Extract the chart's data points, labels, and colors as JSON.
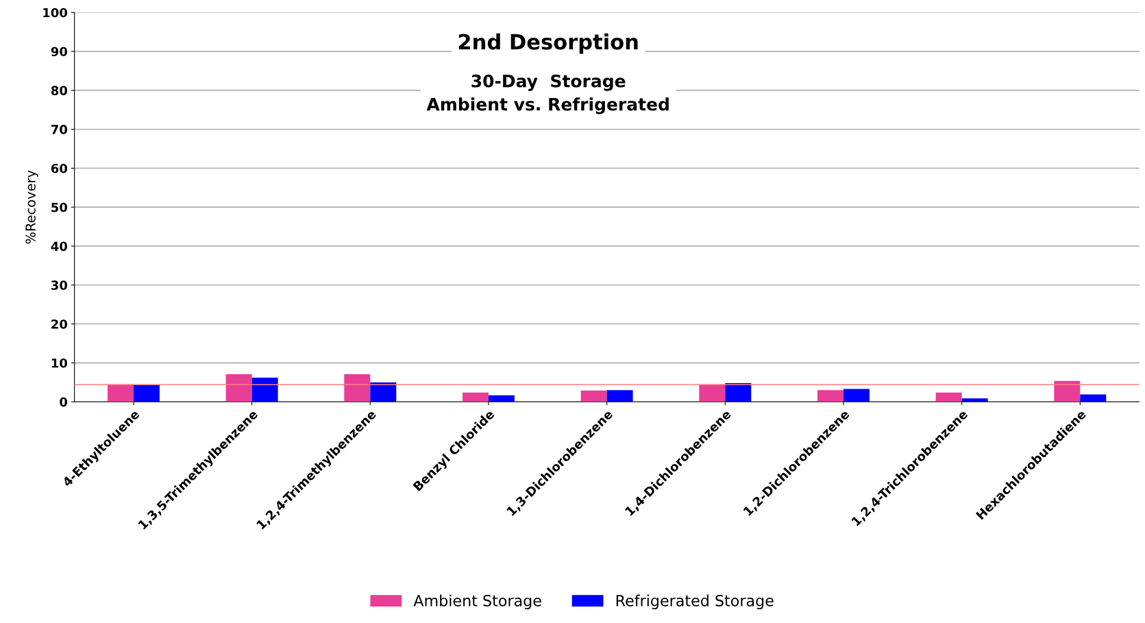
{
  "chart_data": {
    "type": "bar",
    "title": "2nd Desorption",
    "subtitle": "30-Day  Storage\nAmbient vs. Refrigerated",
    "ylabel": "%Recovery",
    "categories": [
      "4-Ethyltoluene",
      "1,3,5-Trimethylbenzene",
      "1,2,4-Trimethylbenzene",
      "Benzyl Chloride",
      "1,3-Dichlorobenzene",
      "1,4-Dichlorobenzene",
      "1,2-Dichlorobenzene",
      "1,2,4-Trichlorobenzene",
      "Hexachlorobutadiene"
    ],
    "series": [
      {
        "name": "Ambient Storage",
        "color": "#e83e96",
        "values": [
          4.5,
          7.1,
          7.1,
          2.4,
          2.9,
          4.5,
          3.0,
          2.4,
          5.4
        ]
      },
      {
        "name": "Refrigerated Storage",
        "color": "#0000ff",
        "values": [
          4.3,
          6.2,
          5.0,
          1.7,
          3.0,
          4.8,
          3.3,
          0.9,
          1.9
        ]
      }
    ],
    "ref_lines": [
      {
        "axis": "y",
        "value": 4.4,
        "label": null,
        "color": "#ff7f7f"
      }
    ],
    "ylim": [
      0,
      100
    ],
    "yticks": [
      0,
      10,
      20,
      30,
      40,
      50,
      60,
      70,
      80,
      90,
      100
    ],
    "grid": "y",
    "legend": "bottom"
  }
}
